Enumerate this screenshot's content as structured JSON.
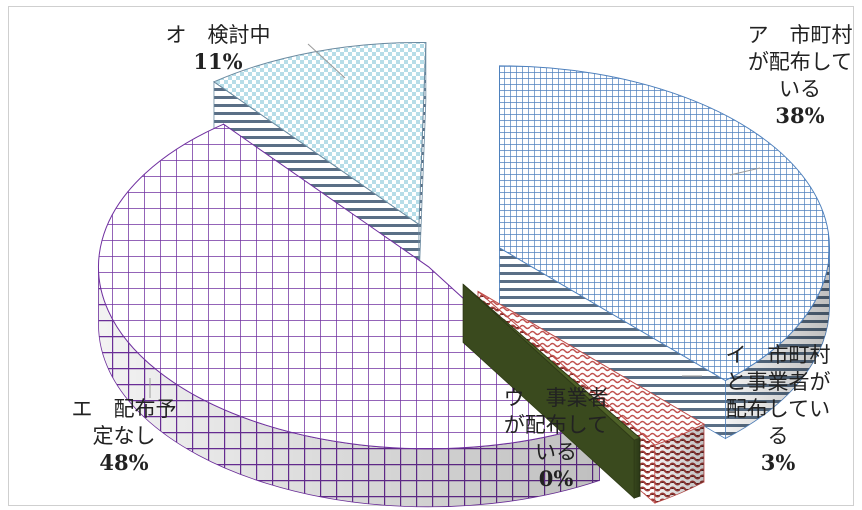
{
  "chart_data": {
    "type": "pie",
    "title": "",
    "legend": "none",
    "slices": [
      {
        "label_lines": [
          "ア　市町村",
          "が配布して",
          "いる"
        ],
        "value": 38,
        "value_label": "38%",
        "color": "#7fa6d6",
        "pattern": "grid"
      },
      {
        "label_lines": [
          "イ　市町村",
          "と事業者が",
          "配布してい",
          "る"
        ],
        "value": 3,
        "value_label": "3%",
        "color": "#c0504d",
        "pattern": "wave"
      },
      {
        "label_lines": [
          "ウ　事業者",
          "が配布して",
          "いる"
        ],
        "value": 0,
        "value_label": "0%",
        "color": "#4f6228",
        "pattern": "solid"
      },
      {
        "label_lines": [
          "エ　配布予",
          "定なし"
        ],
        "value": 48,
        "value_label": "48%",
        "color": "#7030a0",
        "pattern": "lattice"
      },
      {
        "label_lines": [
          "オ　検討中"
        ],
        "value": 11,
        "value_label": "11%",
        "color": "#92cddc",
        "pattern": "checker"
      }
    ]
  }
}
